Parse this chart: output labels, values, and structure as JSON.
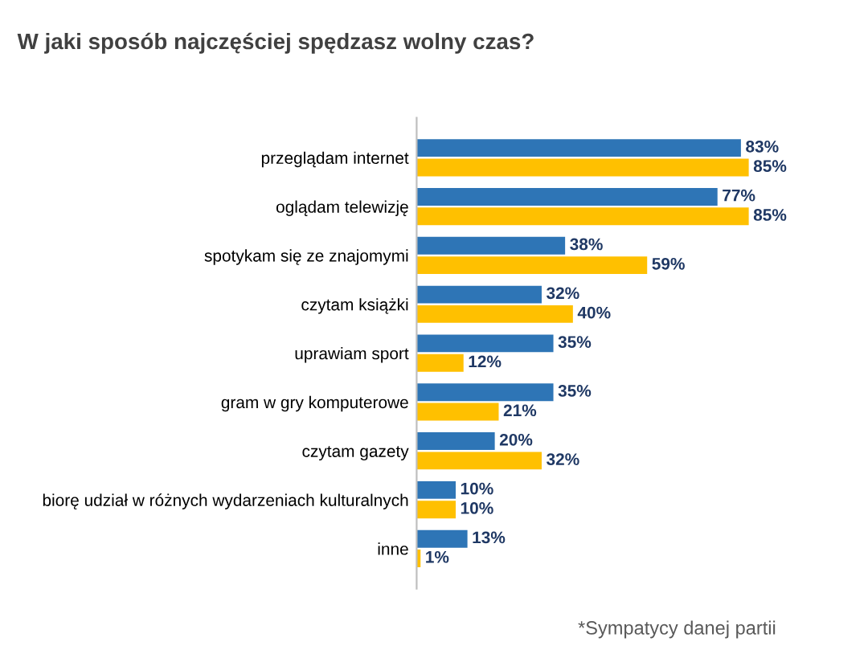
{
  "chart_data": {
    "type": "bar",
    "orientation": "horizontal",
    "title": "W jaki sposób najczęściej spędzasz wolny czas?",
    "categories": [
      "przeglądam internet",
      "oglądam telewizję",
      "spotykam się ze znajomymi",
      "czytam książki",
      "uprawiam sport",
      "gram w gry komputerowe",
      "czytam gazety",
      "biorę udział w różnych wydarzeniach kulturalnych",
      "inne"
    ],
    "series": [
      {
        "color": "#2e75b6",
        "values": [
          83,
          77,
          38,
          32,
          35,
          35,
          20,
          10,
          13
        ],
        "value_labels": [
          "83%",
          "77%",
          "38%",
          "32%",
          "35%",
          "35%",
          "20%",
          "10%",
          "13%"
        ]
      },
      {
        "color": "#ffc000",
        "values": [
          85,
          85,
          59,
          40,
          12,
          21,
          32,
          10,
          1
        ],
        "value_labels": [
          "85%",
          "85%",
          "59%",
          "40%",
          "12%",
          "21%",
          "32%",
          "10%",
          "1%"
        ]
      }
    ],
    "grid": false,
    "legend": false,
    "annotations": [
      "*Sympatycy danej partii"
    ]
  }
}
